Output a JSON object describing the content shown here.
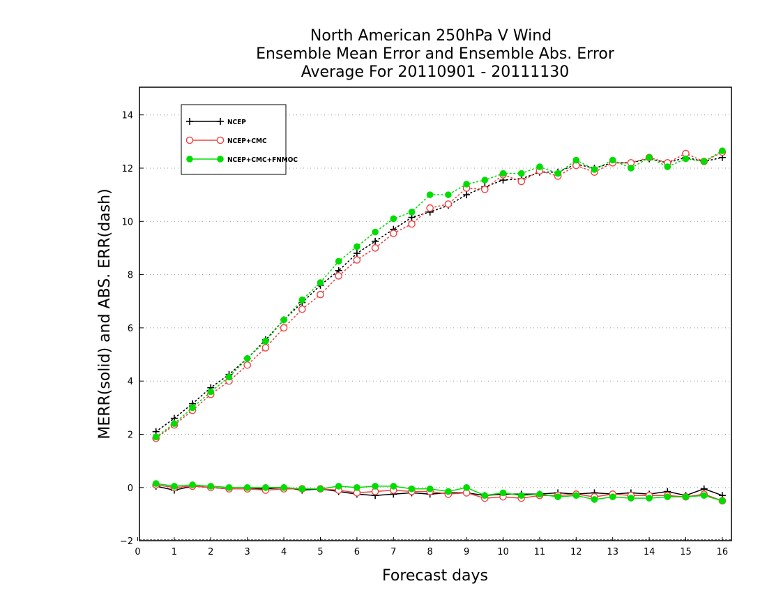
{
  "chart_data": {
    "type": "line",
    "title": [
      "North American 250hPa V Wind",
      "Ensemble Mean Error and Ensemble Abs. Error",
      "Average For 20110901 - 20111130"
    ],
    "xlabel": "Forecast days",
    "ylabel": "MERR(solid) and ABS. ERR(dash)",
    "xlim": [
      0,
      16.1
    ],
    "ylim": [
      -2,
      15
    ],
    "xticks": [
      "0",
      "1",
      "2",
      "3",
      "4",
      "5",
      "6",
      "7",
      "8",
      "9",
      "10",
      "11",
      "12",
      "13",
      "14",
      "15",
      "16"
    ],
    "yticks": [
      "−2",
      "0",
      "2",
      "4",
      "6",
      "8",
      "10",
      "12",
      "14"
    ],
    "ytick_values": [
      -2,
      0,
      2,
      4,
      6,
      8,
      10,
      12,
      14
    ],
    "grid": "horizontal dotted",
    "legend_position": "top-left",
    "x": [
      0.5,
      1,
      1.5,
      2,
      2.5,
      3,
      3.5,
      4,
      4.5,
      5,
      5.5,
      6,
      6.5,
      7,
      7.5,
      8,
      8.5,
      9,
      9.5,
      10,
      10.5,
      11,
      11.5,
      12,
      12.5,
      13,
      13.5,
      14,
      14.5,
      15,
      15.5,
      16
    ],
    "series": [
      {
        "name": "NCEP",
        "color": "#000000",
        "marker": "plus",
        "abs_err": [
          2.1,
          2.6,
          3.15,
          3.75,
          4.25,
          4.85,
          5.55,
          6.3,
          6.95,
          7.6,
          8.15,
          8.8,
          9.25,
          9.7,
          10.15,
          10.35,
          10.6,
          11.0,
          11.3,
          11.55,
          11.6,
          11.85,
          11.85,
          12.15,
          12.0,
          12.2,
          12.2,
          12.35,
          12.2,
          12.4,
          12.25,
          12.4
        ],
        "mean_err": [
          0.05,
          -0.1,
          0.05,
          0.0,
          -0.05,
          -0.05,
          -0.05,
          0.0,
          -0.1,
          -0.05,
          -0.15,
          -0.25,
          -0.3,
          -0.25,
          -0.2,
          -0.25,
          -0.2,
          -0.2,
          -0.3,
          -0.25,
          -0.25,
          -0.25,
          -0.2,
          -0.25,
          -0.2,
          -0.25,
          -0.2,
          -0.25,
          -0.15,
          -0.3,
          -0.05,
          -0.3
        ]
      },
      {
        "name": "NCEP+CMC",
        "color": "#ee4444",
        "marker": "open-circle",
        "abs_err": [
          1.85,
          2.35,
          2.9,
          3.5,
          4.0,
          4.6,
          5.25,
          6.0,
          6.7,
          7.25,
          7.95,
          8.55,
          9.0,
          9.55,
          9.9,
          10.5,
          10.65,
          11.25,
          11.2,
          11.75,
          11.5,
          11.9,
          11.7,
          12.1,
          11.85,
          12.2,
          12.2,
          12.4,
          12.2,
          12.55,
          12.25,
          12.6
        ],
        "mean_err": [
          0.1,
          0.0,
          0.05,
          0.0,
          -0.05,
          -0.05,
          -0.1,
          -0.05,
          -0.05,
          -0.05,
          -0.1,
          -0.2,
          -0.15,
          -0.1,
          -0.15,
          -0.15,
          -0.25,
          -0.2,
          -0.4,
          -0.35,
          -0.4,
          -0.3,
          -0.3,
          -0.25,
          -0.35,
          -0.25,
          -0.3,
          -0.3,
          -0.3,
          -0.35,
          -0.25,
          -0.5
        ]
      },
      {
        "name": "NCEP+CMC+FNMOC",
        "color": "#00dd00",
        "marker": "filled-circle",
        "abs_err": [
          1.9,
          2.4,
          3.0,
          3.6,
          4.15,
          4.85,
          5.5,
          6.3,
          7.05,
          7.7,
          8.5,
          9.05,
          9.6,
          10.1,
          10.35,
          11.0,
          11.0,
          11.4,
          11.55,
          11.8,
          11.8,
          12.05,
          11.8,
          12.3,
          11.95,
          12.3,
          12.0,
          12.4,
          12.05,
          12.35,
          12.25,
          12.65
        ],
        "mean_err": [
          0.15,
          0.05,
          0.1,
          0.05,
          0.0,
          0.0,
          0.0,
          0.0,
          -0.05,
          -0.05,
          0.05,
          0.0,
          0.05,
          0.05,
          -0.05,
          -0.05,
          -0.15,
          0.0,
          -0.3,
          -0.2,
          -0.3,
          -0.25,
          -0.35,
          -0.3,
          -0.45,
          -0.35,
          -0.4,
          -0.4,
          -0.35,
          -0.35,
          -0.3,
          -0.5
        ]
      }
    ]
  }
}
